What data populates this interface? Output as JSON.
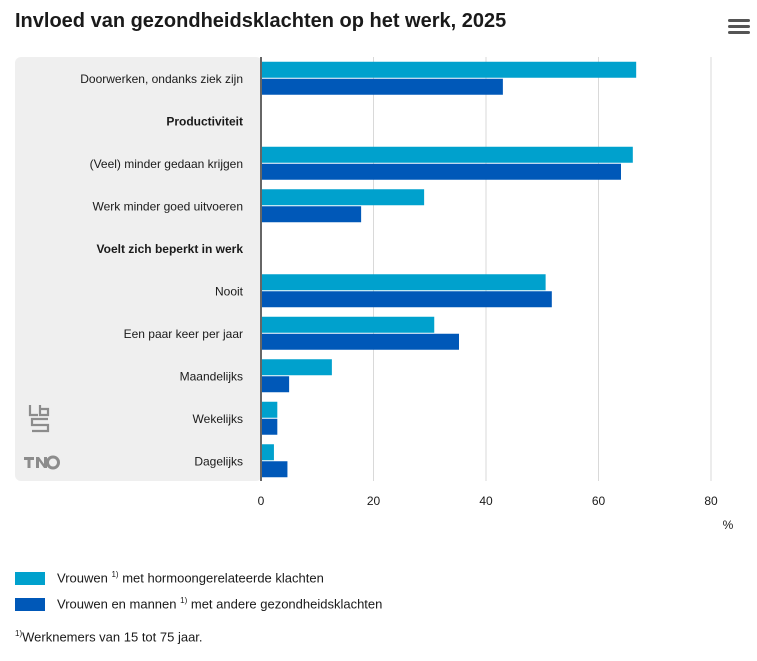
{
  "colors": {
    "series1": "#00a1cd",
    "series2": "#0058b8",
    "panel": "#efefef",
    "axis": "#666666",
    "grid": "#d9d9d9"
  },
  "icons": {
    "menu": "hamburger-menu-icon",
    "cbs_logo": "cbs-logo-icon",
    "tno_logo": "tno-logo-icon"
  },
  "chart_data": {
    "type": "bar",
    "orientation": "horizontal",
    "title": "Invloed van gezondheidsklachten op het werk, 2025",
    "categories": [
      {
        "label": "Doorwerken, ondanks ziek zijn",
        "header": false
      },
      {
        "label": "Productiviteit",
        "header": true
      },
      {
        "label": "(Veel) minder gedaan krijgen",
        "header": false
      },
      {
        "label": "Werk minder goed uitvoeren",
        "header": false
      },
      {
        "label": "Voelt zich beperkt in werk",
        "header": true
      },
      {
        "label": "Nooit",
        "header": false
      },
      {
        "label": "Een paar keer per jaar",
        "header": false
      },
      {
        "label": "Maandelijks",
        "header": false
      },
      {
        "label": "Wekelijks",
        "header": false
      },
      {
        "label": "Dagelijks",
        "header": false
      }
    ],
    "series": [
      {
        "name": "Vrouwen",
        "name_sup": "1)",
        "name_rest": " met hormoongerelateerde klachten",
        "values": [
          66.7,
          null,
          66.1,
          29.0,
          null,
          50.6,
          30.8,
          12.6,
          2.9,
          2.3
        ]
      },
      {
        "name": "Vrouwen en mannen",
        "name_sup": "1)",
        "name_rest": " met andere gezondheidsklachten",
        "values": [
          43.0,
          null,
          64.0,
          17.8,
          null,
          51.7,
          35.2,
          5.0,
          2.9,
          4.7
        ]
      }
    ],
    "xlim": [
      0,
      80
    ],
    "xticks": [
      0,
      20,
      40,
      60,
      80
    ],
    "xunit": "%",
    "grid": true,
    "legend": "bottom"
  },
  "footnote": {
    "sup": "1)",
    "text": "Werknemers van 15 tot 75 jaar."
  }
}
